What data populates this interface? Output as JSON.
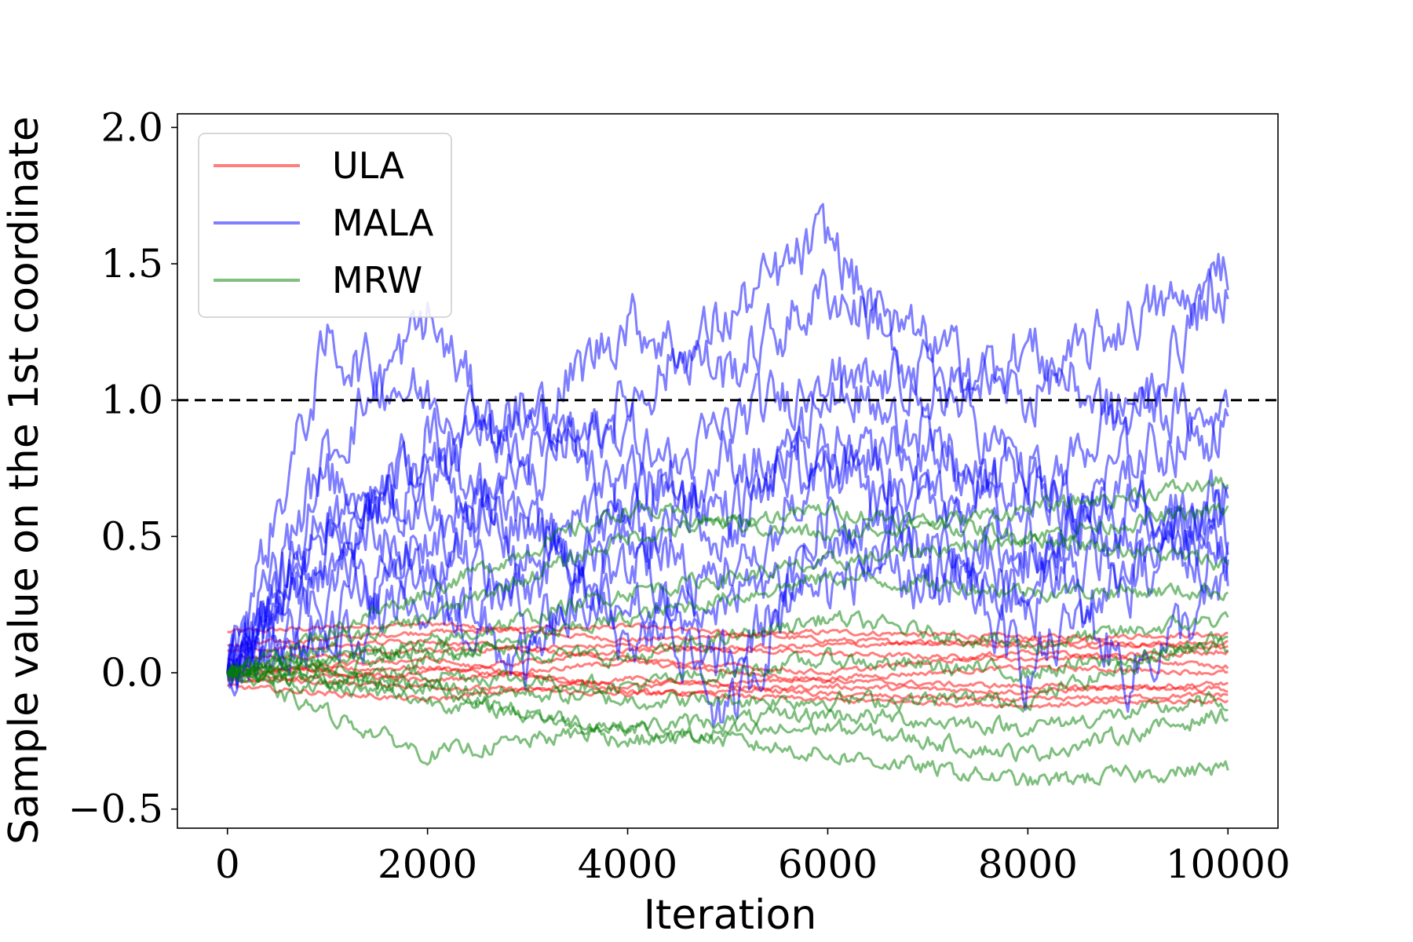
{
  "chart_data": {
    "type": "line",
    "title": "",
    "xlabel": "Iteration",
    "ylabel": "Sample value on the 1st coordinate",
    "xlim": [
      -500,
      10500
    ],
    "ylim": [
      -0.57,
      2.05
    ],
    "xticks": [
      0,
      2000,
      4000,
      6000,
      8000,
      10000
    ],
    "xtick_labels": [
      "0",
      "2000",
      "4000",
      "6000",
      "8000",
      "10000"
    ],
    "yticks": [
      -0.5,
      0.0,
      0.5,
      1.0,
      1.5,
      2.0
    ],
    "ytick_labels": [
      "−0.5",
      "0.0",
      "0.5",
      "1.0",
      "1.5",
      "2.0"
    ],
    "grid": false,
    "legend_position": "top-left",
    "reference_line": {
      "y": 1.0,
      "style": "dashed",
      "color": "#000000"
    },
    "colors": {
      "ULA": "#ff0000",
      "MALA": "#0000ff",
      "MRW": "#008000"
    },
    "series": [
      {
        "name": "ULA",
        "color": "#ff0000",
        "alpha": 0.5,
        "trajectories": [
          {
            "x": [
              0,
              2000,
              4000,
              6000,
              8000,
              10000
            ],
            "y": [
              0.15,
              0.18,
              0.12,
              0.15,
              0.13,
              0.14
            ]
          },
          {
            "x": [
              0,
              2000,
              4000,
              6000,
              8000,
              10000
            ],
            "y": [
              0.1,
              0.15,
              0.17,
              0.12,
              0.1,
              0.11
            ]
          },
          {
            "x": [
              0,
              2000,
              4000,
              6000,
              8000,
              10000
            ],
            "y": [
              0.05,
              0.08,
              0.1,
              0.07,
              0.05,
              0.08
            ]
          },
          {
            "x": [
              0,
              2000,
              4000,
              6000,
              8000,
              10000
            ],
            "y": [
              0.0,
              0.02,
              -0.05,
              -0.02,
              0.02,
              0.0
            ]
          },
          {
            "x": [
              0,
              2000,
              4000,
              6000,
              8000,
              10000
            ],
            "y": [
              -0.02,
              -0.05,
              -0.08,
              -0.05,
              -0.07,
              -0.04
            ]
          },
          {
            "x": [
              0,
              2000,
              4000,
              6000,
              8000,
              10000
            ],
            "y": [
              -0.05,
              -0.1,
              -0.02,
              -0.08,
              -0.1,
              -0.08
            ]
          },
          {
            "x": [
              0,
              2000,
              4000,
              6000,
              8000,
              10000
            ],
            "y": [
              0.0,
              0.05,
              -0.07,
              -0.1,
              -0.12,
              -0.1
            ]
          },
          {
            "x": [
              0,
              2000,
              4000,
              6000,
              8000,
              10000
            ],
            "y": [
              0.03,
              -0.03,
              0.04,
              -0.03,
              -0.05,
              -0.06
            ]
          },
          {
            "x": [
              0,
              2000,
              4000,
              6000,
              8000,
              10000
            ],
            "y": [
              -0.03,
              0.0,
              0.08,
              0.1,
              0.12,
              0.09
            ]
          },
          {
            "x": [
              0,
              2000,
              4000,
              6000,
              8000,
              10000
            ],
            "y": [
              0.08,
              0.12,
              0.05,
              0.0,
              0.08,
              0.02
            ]
          }
        ]
      },
      {
        "name": "MALA",
        "color": "#0000ff",
        "alpha": 0.5,
        "trajectories": [
          {
            "x": [
              0,
              1000,
              2000,
              3000,
              4000,
              5000,
              6000,
              7000,
              8000,
              9000,
              10000
            ],
            "y": [
              0.0,
              1.2,
              1.0,
              0.9,
              1.3,
              1.1,
              1.4,
              1.2,
              1.0,
              1.3,
              1.4
            ]
          },
          {
            "x": [
              0,
              1000,
              2000,
              3000,
              4000,
              5000,
              6000,
              7000,
              8000,
              9000,
              10000
            ],
            "y": [
              0.0,
              0.8,
              1.3,
              0.7,
              1.0,
              1.3,
              1.6,
              1.0,
              1.2,
              0.9,
              1.5
            ]
          },
          {
            "x": [
              0,
              1000,
              2000,
              3000,
              4000,
              5000,
              6000,
              7000,
              8000,
              9000,
              10000
            ],
            "y": [
              0.0,
              0.5,
              0.7,
              1.0,
              0.6,
              0.9,
              1.1,
              0.8,
              0.6,
              1.0,
              0.9
            ]
          },
          {
            "x": [
              0,
              1000,
              2000,
              3000,
              4000,
              5000,
              6000,
              7000,
              8000,
              9000,
              10000
            ],
            "y": [
              0.0,
              0.6,
              0.4,
              0.8,
              0.9,
              0.5,
              1.0,
              1.1,
              0.7,
              0.5,
              0.6
            ]
          },
          {
            "x": [
              0,
              1000,
              2000,
              3000,
              4000,
              5000,
              6000,
              7000,
              8000,
              9000,
              10000
            ],
            "y": [
              0.0,
              0.3,
              0.9,
              0.5,
              0.4,
              0.8,
              0.7,
              0.9,
              0.4,
              0.7,
              0.5
            ]
          },
          {
            "x": [
              0,
              1000,
              2000,
              3000,
              4000,
              5000,
              6000,
              7000,
              8000,
              9000,
              10000
            ],
            "y": [
              0.0,
              0.4,
              0.2,
              0.3,
              0.6,
              0.2,
              0.9,
              0.6,
              0.8,
              0.3,
              0.7
            ]
          },
          {
            "x": [
              0,
              1000,
              2000,
              3000,
              4000,
              5000,
              6000,
              7000,
              8000,
              9000,
              10000
            ],
            "y": [
              0.0,
              0.7,
              0.6,
              0.2,
              0.3,
              0.0,
              0.5,
              0.7,
              0.2,
              0.6,
              0.4
            ]
          },
          {
            "x": [
              0,
              1000,
              2000,
              3000,
              4000,
              5000,
              6000,
              7000,
              8000,
              9000,
              10000
            ],
            "y": [
              0.0,
              0.2,
              0.5,
              0.6,
              0.1,
              0.4,
              0.3,
              0.5,
              0.0,
              0.4,
              0.5
            ]
          },
          {
            "x": [
              0,
              1000,
              2000,
              3000,
              4000,
              5000,
              6000,
              7000,
              8000,
              9000,
              10000
            ],
            "y": [
              0.0,
              0.1,
              0.3,
              0.0,
              0.5,
              -0.2,
              0.6,
              0.3,
              0.5,
              0.0,
              0.3
            ]
          },
          {
            "x": [
              0,
              1000,
              2000,
              3000,
              4000,
              5000,
              6000,
              7000,
              8000,
              9000,
              10000
            ],
            "y": [
              0.0,
              0.5,
              0.8,
              0.4,
              0.7,
              0.6,
              0.8,
              0.4,
              0.3,
              0.8,
              0.9
            ]
          }
        ]
      },
      {
        "name": "MRW",
        "color": "#008000",
        "alpha": 0.5,
        "trajectories": [
          {
            "x": [
              0,
              2000,
              4000,
              6000,
              8000,
              10000
            ],
            "y": [
              0.0,
              0.3,
              0.6,
              0.5,
              0.6,
              0.7
            ]
          },
          {
            "x": [
              0,
              2000,
              4000,
              6000,
              8000,
              10000
            ],
            "y": [
              0.0,
              0.2,
              0.5,
              0.6,
              0.5,
              0.6
            ]
          },
          {
            "x": [
              0,
              2000,
              4000,
              6000,
              8000,
              10000
            ],
            "y": [
              0.0,
              0.1,
              0.3,
              0.4,
              0.5,
              0.4
            ]
          },
          {
            "x": [
              0,
              2000,
              4000,
              6000,
              8000,
              10000
            ],
            "y": [
              0.0,
              0.05,
              0.2,
              0.35,
              0.3,
              0.3
            ]
          },
          {
            "x": [
              0,
              2000,
              4000,
              6000,
              8000,
              10000
            ],
            "y": [
              0.0,
              0.1,
              0.05,
              0.2,
              0.1,
              0.2
            ]
          },
          {
            "x": [
              0,
              2000,
              4000,
              6000,
              8000,
              10000
            ],
            "y": [
              0.0,
              0.0,
              -0.05,
              0.05,
              0.0,
              0.1
            ]
          },
          {
            "x": [
              0,
              2000,
              4000,
              6000,
              8000,
              10000
            ],
            "y": [
              0.0,
              -0.05,
              -0.1,
              -0.1,
              -0.1,
              0.15
            ]
          },
          {
            "x": [
              0,
              2000,
              4000,
              6000,
              8000,
              10000
            ],
            "y": [
              0.0,
              -0.1,
              -0.2,
              -0.15,
              -0.2,
              -0.1
            ]
          },
          {
            "x": [
              0,
              2000,
              4000,
              6000,
              8000,
              10000
            ],
            "y": [
              0.0,
              -0.05,
              -0.25,
              -0.2,
              -0.3,
              -0.15
            ]
          },
          {
            "x": [
              0,
              2000,
              4000,
              6000,
              8000,
              10000
            ],
            "y": [
              0.0,
              -0.3,
              -0.2,
              -0.3,
              -0.4,
              -0.35
            ]
          }
        ]
      }
    ]
  }
}
